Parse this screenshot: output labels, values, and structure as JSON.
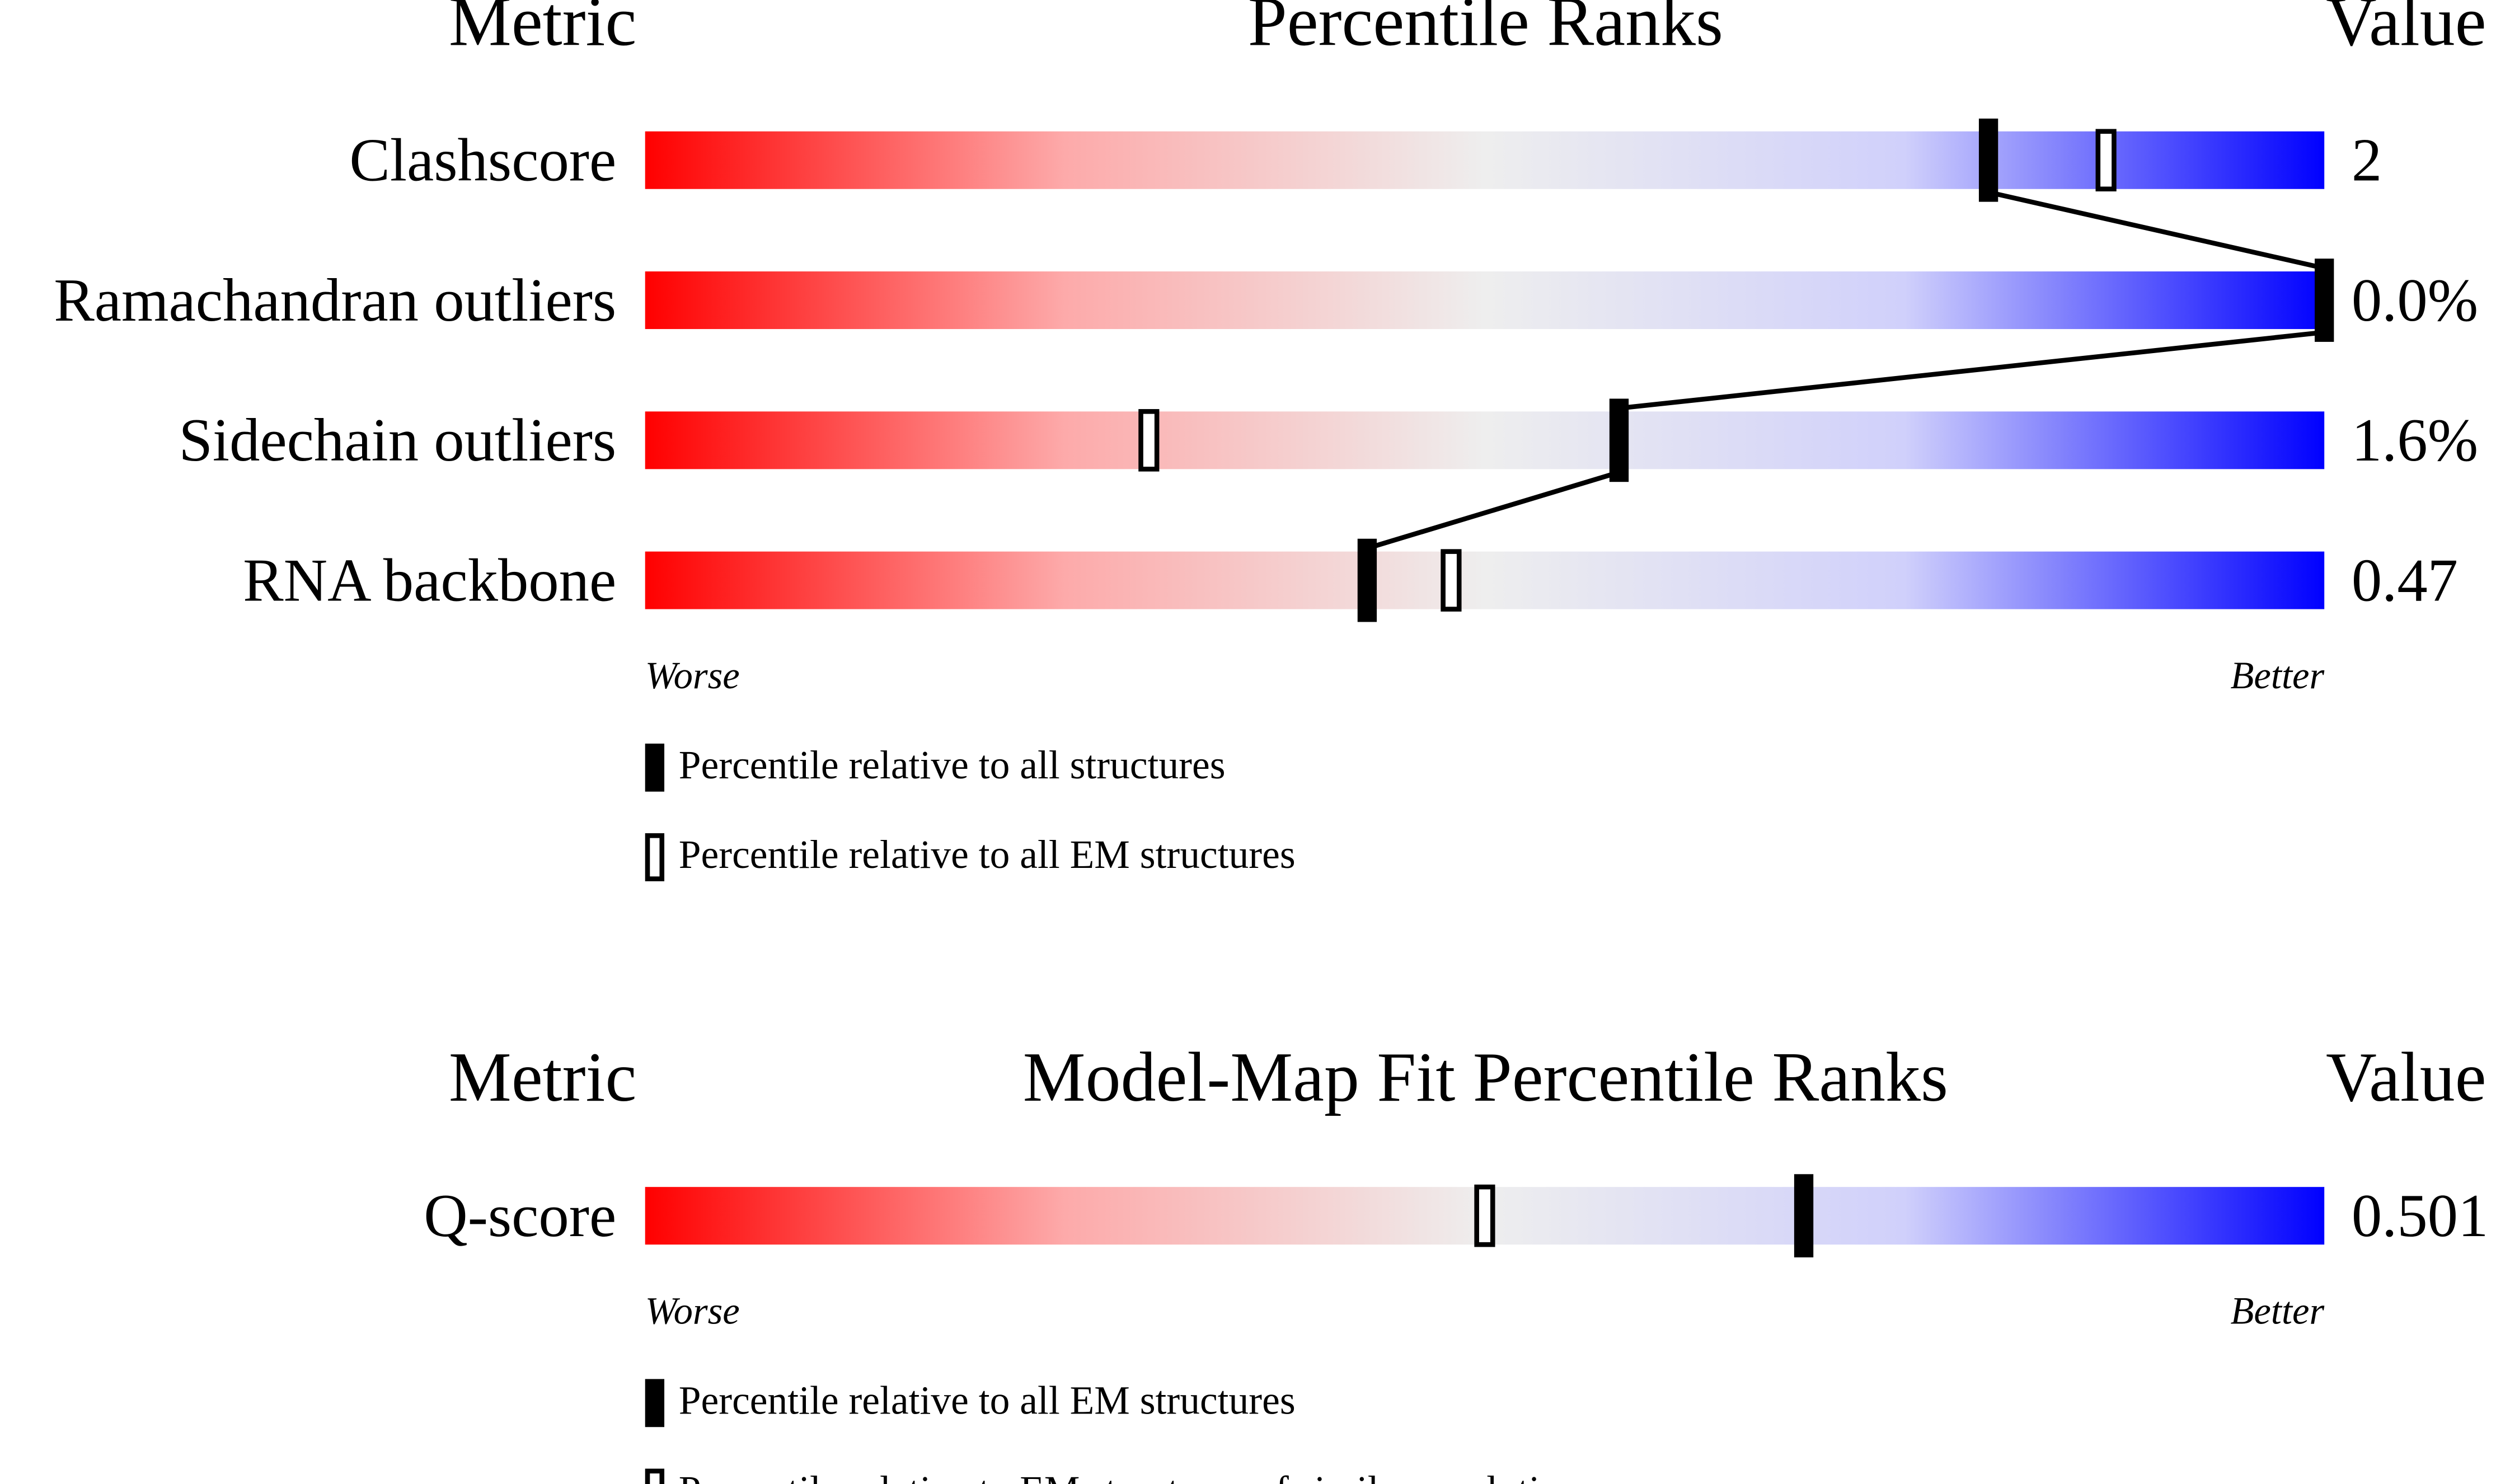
{
  "chart_data": [
    {
      "type": "percentile",
      "metric_header": "Metric",
      "title": "Percentile Ranks",
      "value_header": "Value",
      "categories": [
        "Clashscore",
        "Ramachandran outliers",
        "Sidechain outliers",
        "RNA backbone"
      ],
      "metric_values": [
        "2",
        "0.0%",
        "1.6%",
        "0.47"
      ],
      "series": [
        {
          "name": "Percentile relative to all structures",
          "color": "#000000",
          "filled": true,
          "values": [
            80,
            100,
            58,
            43
          ]
        },
        {
          "name": "Percentile relative to all EM structures",
          "color": "#000000",
          "filled": false,
          "values": [
            87,
            null,
            30,
            48
          ]
        }
      ],
      "xlim": [
        0,
        100
      ],
      "worse_label": "Worse",
      "better_label": "Better"
    },
    {
      "type": "percentile",
      "metric_header": "Metric",
      "title": "Model-Map Fit Percentile Ranks",
      "value_header": "Value",
      "categories": [
        "Q-score"
      ],
      "metric_values": [
        "0.501"
      ],
      "series": [
        {
          "name": "Percentile relative to all EM structures",
          "color": "#000000",
          "filled": true,
          "values": [
            69
          ]
        },
        {
          "name": "Percentile relative to EM structures of similar resolution",
          "color": "#000000",
          "filled": false,
          "values": [
            50
          ]
        }
      ],
      "xlim": [
        0,
        100
      ],
      "worse_label": "Worse",
      "better_label": "Better"
    }
  ]
}
